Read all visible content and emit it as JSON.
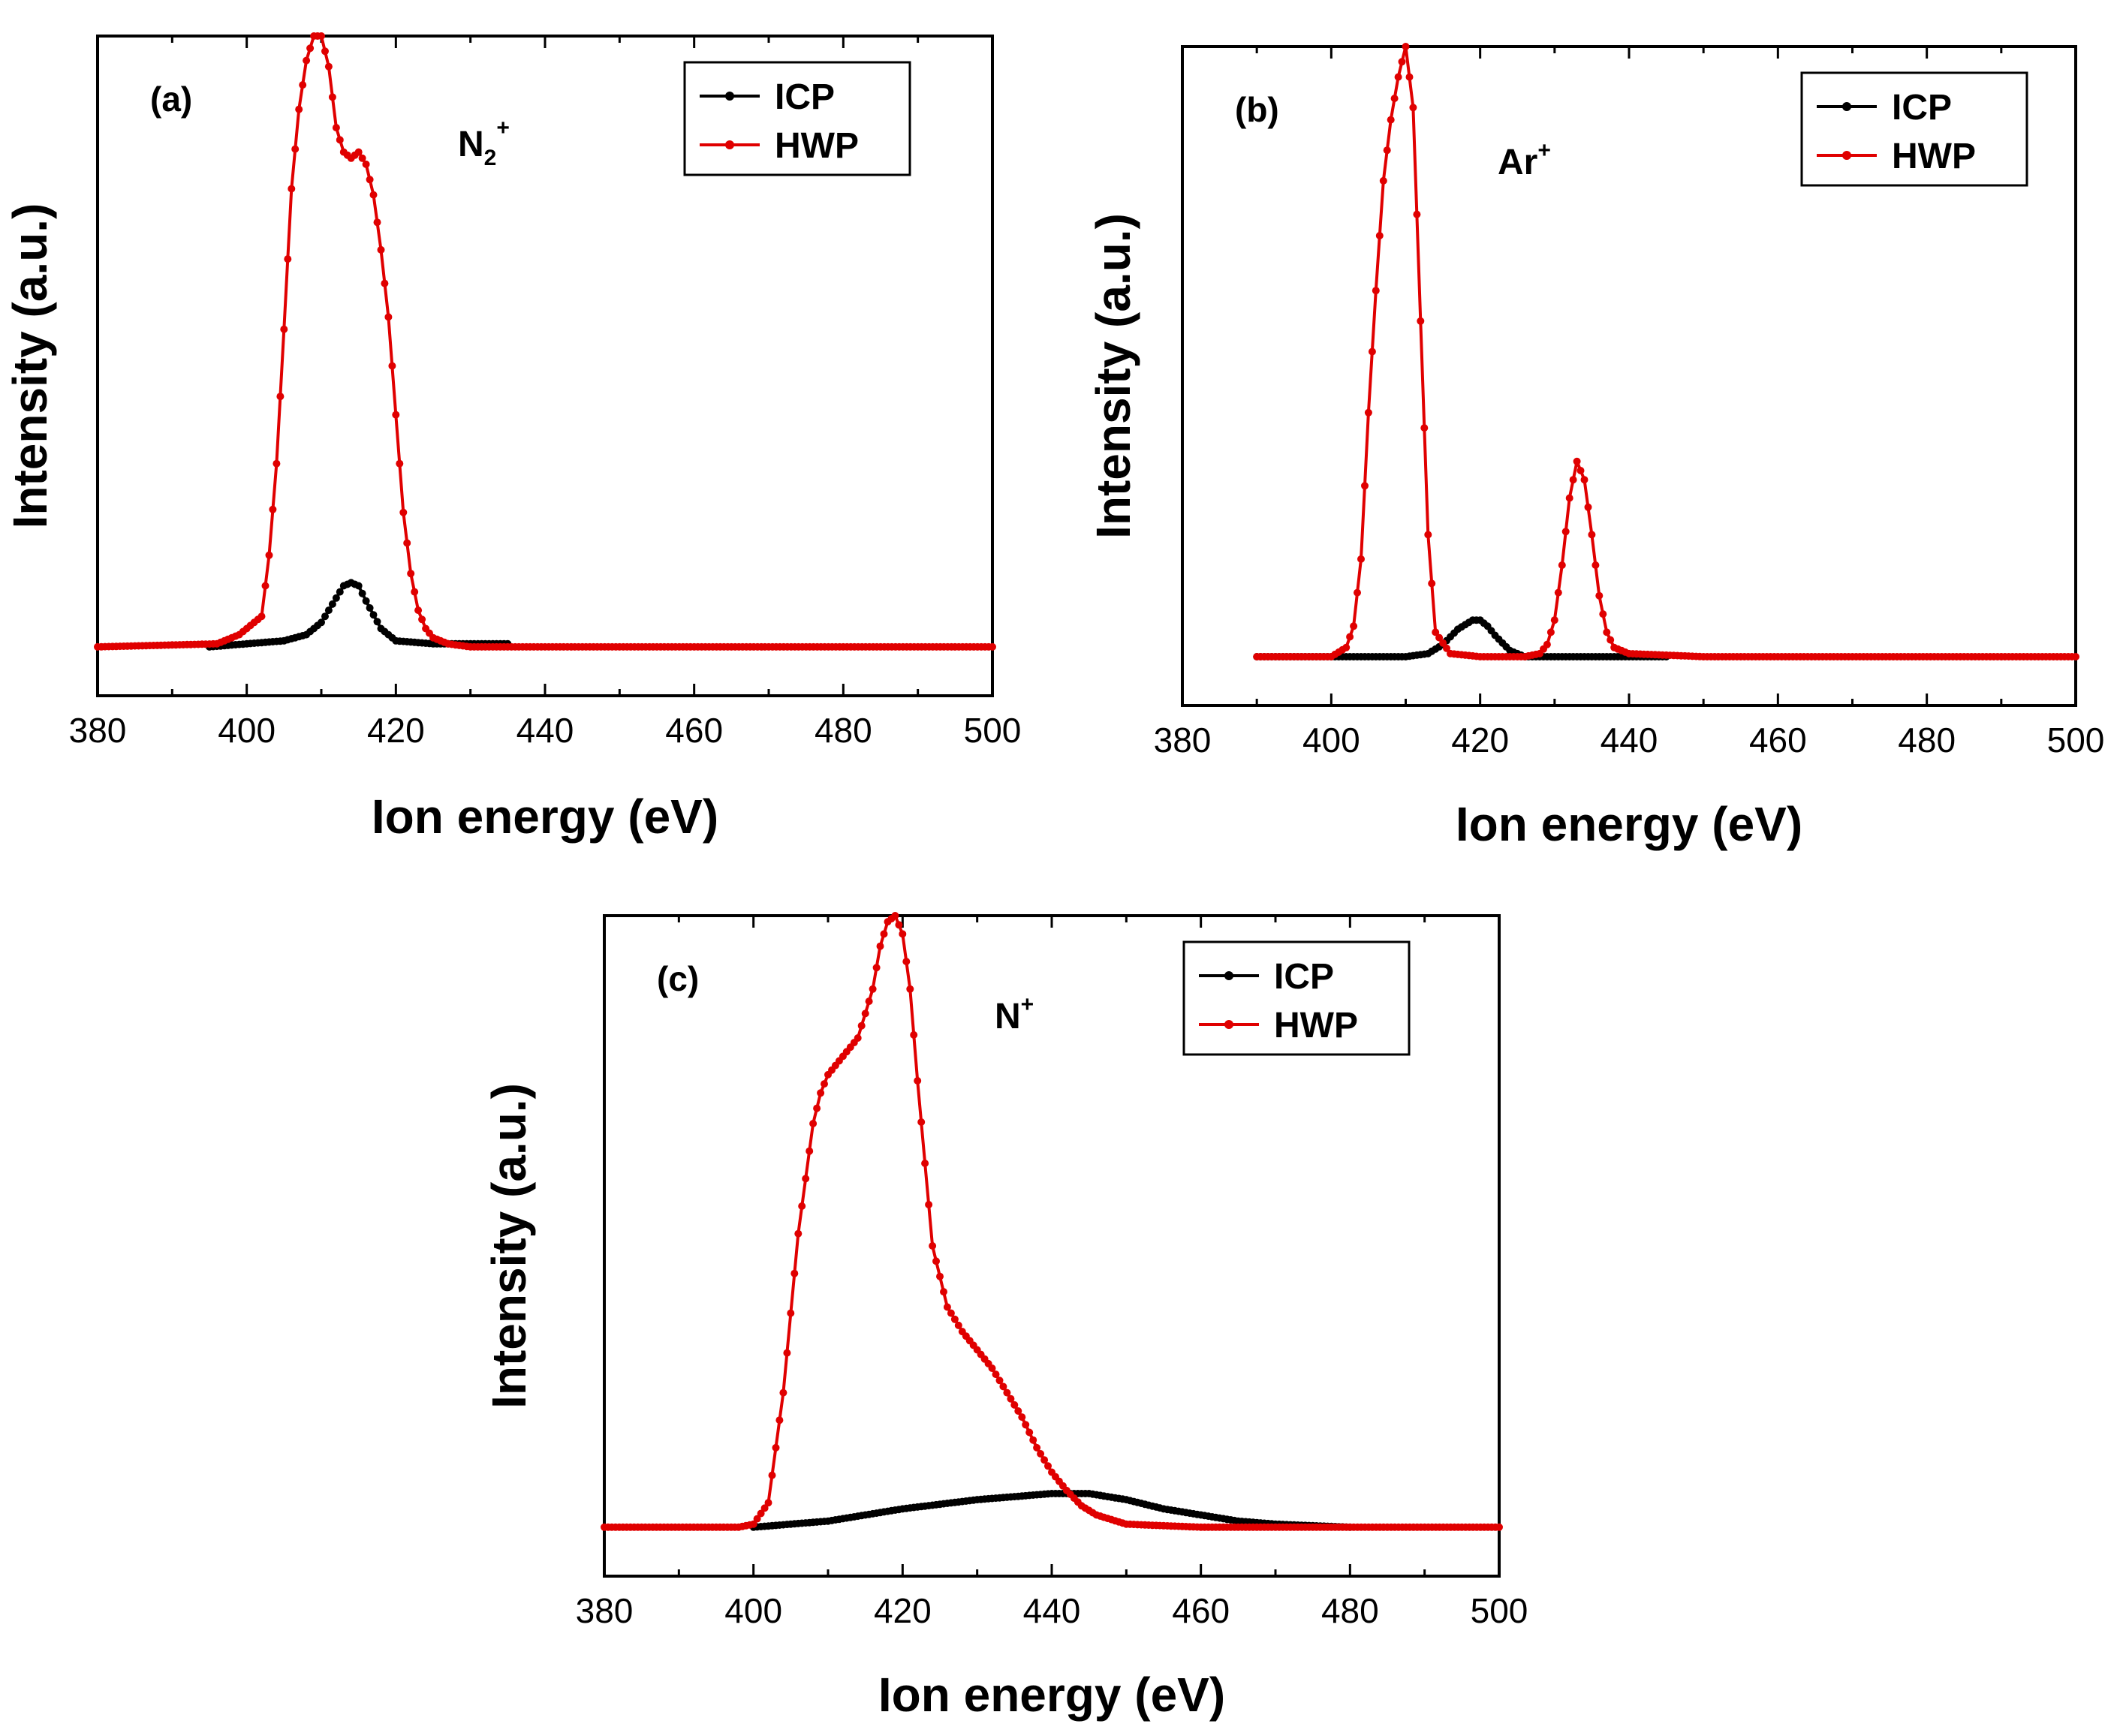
{
  "chart_data": [
    {
      "type": "line",
      "panel_label": "(a)",
      "annotation": {
        "base": "N",
        "sub": "2",
        "sup": "+"
      },
      "xlabel": "Ion energy (eV)",
      "ylabel": "Intensity (a.u.)",
      "xlim": [
        380,
        500
      ],
      "ylim": [
        -0.08,
        1.0
      ],
      "xticks": [
        380,
        400,
        420,
        440,
        460,
        480,
        500
      ],
      "legend": {
        "position": "top-right",
        "entries": [
          "ICP",
          "HWP"
        ]
      },
      "series": [
        {
          "name": "ICP",
          "color": "#000000",
          "x": [
            395,
            400,
            405,
            408,
            410,
            412,
            413,
            414,
            415,
            416,
            418,
            420,
            425,
            430,
            435
          ],
          "y": [
            0.0,
            0.005,
            0.01,
            0.02,
            0.04,
            0.08,
            0.1,
            0.105,
            0.1,
            0.075,
            0.03,
            0.01,
            0.005,
            0.005,
            0.005
          ],
          "x_range": [
            395,
            435
          ]
        },
        {
          "name": "HWP",
          "color": "#e00000",
          "x": [
            380,
            396,
            398,
            399,
            400,
            402,
            403,
            404,
            405,
            406,
            407,
            408,
            409,
            410,
            411,
            412,
            413,
            414,
            415,
            416,
            417,
            418,
            419,
            420,
            421,
            422,
            423,
            424,
            425,
            427,
            430,
            440,
            460,
            480,
            500
          ],
          "y": [
            0.0,
            0.005,
            0.015,
            0.02,
            0.03,
            0.05,
            0.15,
            0.3,
            0.52,
            0.75,
            0.88,
            0.96,
            1.0,
            1.0,
            0.95,
            0.85,
            0.81,
            0.8,
            0.81,
            0.79,
            0.74,
            0.65,
            0.54,
            0.38,
            0.22,
            0.12,
            0.06,
            0.03,
            0.015,
            0.005,
            0.0,
            0.0,
            0.0,
            0.0,
            0.0
          ]
        }
      ]
    },
    {
      "type": "line",
      "panel_label": "(b)",
      "annotation": {
        "base": "Ar",
        "sub": "",
        "sup": "+"
      },
      "xlabel": "Ion energy (eV)",
      "ylabel": "Intensity (a.u.)",
      "xlim": [
        380,
        500
      ],
      "ylim": [
        -0.08,
        1.0
      ],
      "xticks": [
        380,
        400,
        420,
        440,
        460,
        480,
        500
      ],
      "legend": {
        "position": "top-right",
        "entries": [
          "ICP",
          "HWP"
        ]
      },
      "series": [
        {
          "name": "ICP",
          "color": "#000000",
          "x": [
            390,
            410,
            413,
            415,
            417,
            419,
            420,
            421,
            422,
            424,
            426,
            430,
            445
          ],
          "y": [
            0.0,
            0.0,
            0.005,
            0.02,
            0.045,
            0.06,
            0.06,
            0.05,
            0.035,
            0.01,
            0.0,
            0.0,
            0.0
          ]
        },
        {
          "name": "HWP",
          "color": "#e00000",
          "x": [
            390,
            400,
            402,
            403,
            404,
            405,
            406,
            407,
            408,
            409,
            410,
            411,
            412,
            413,
            414,
            416,
            420,
            426,
            428,
            429,
            430,
            431,
            432,
            433,
            434,
            435,
            436,
            437,
            438,
            440,
            450,
            470,
            500
          ],
          "y": [
            0.0,
            0.0,
            0.015,
            0.05,
            0.16,
            0.4,
            0.6,
            0.78,
            0.88,
            0.95,
            1.0,
            0.9,
            0.55,
            0.2,
            0.04,
            0.005,
            0.0,
            0.0,
            0.005,
            0.02,
            0.06,
            0.15,
            0.26,
            0.32,
            0.29,
            0.2,
            0.1,
            0.04,
            0.015,
            0.005,
            0.0,
            0.0,
            0.0
          ]
        }
      ]
    },
    {
      "type": "line",
      "panel_label": "(c)",
      "annotation": {
        "base": "N",
        "sub": "",
        "sup": "+"
      },
      "xlabel": "Ion energy (eV)",
      "ylabel": "Intensity (a.u.)",
      "xlim": [
        380,
        500
      ],
      "ylim": [
        -0.08,
        1.0
      ],
      "xticks": [
        380,
        400,
        420,
        440,
        460,
        480,
        500
      ],
      "legend": {
        "position": "top-right",
        "entries": [
          "ICP",
          "HWP"
        ]
      },
      "series": [
        {
          "name": "ICP",
          "color": "#000000",
          "x": [
            400,
            410,
            420,
            430,
            440,
            445,
            450,
            455,
            460,
            465,
            470,
            480
          ],
          "y": [
            0.0,
            0.01,
            0.03,
            0.045,
            0.055,
            0.055,
            0.045,
            0.03,
            0.02,
            0.01,
            0.005,
            0.0
          ]
        },
        {
          "name": "HWP",
          "color": "#e00000",
          "x": [
            380,
            398,
            400,
            402,
            404,
            406,
            408,
            409,
            410,
            412,
            414,
            416,
            417,
            418,
            419,
            420,
            421,
            422,
            424,
            426,
            428,
            430,
            432,
            434,
            436,
            438,
            440,
            442,
            444,
            446,
            450,
            460,
            500
          ],
          "y": [
            0.0,
            0.0,
            0.005,
            0.04,
            0.22,
            0.48,
            0.66,
            0.71,
            0.74,
            0.77,
            0.8,
            0.88,
            0.95,
            0.99,
            1.0,
            0.97,
            0.88,
            0.73,
            0.46,
            0.36,
            0.32,
            0.29,
            0.26,
            0.22,
            0.18,
            0.13,
            0.09,
            0.06,
            0.035,
            0.02,
            0.005,
            0.0,
            0.0
          ]
        }
      ]
    }
  ]
}
